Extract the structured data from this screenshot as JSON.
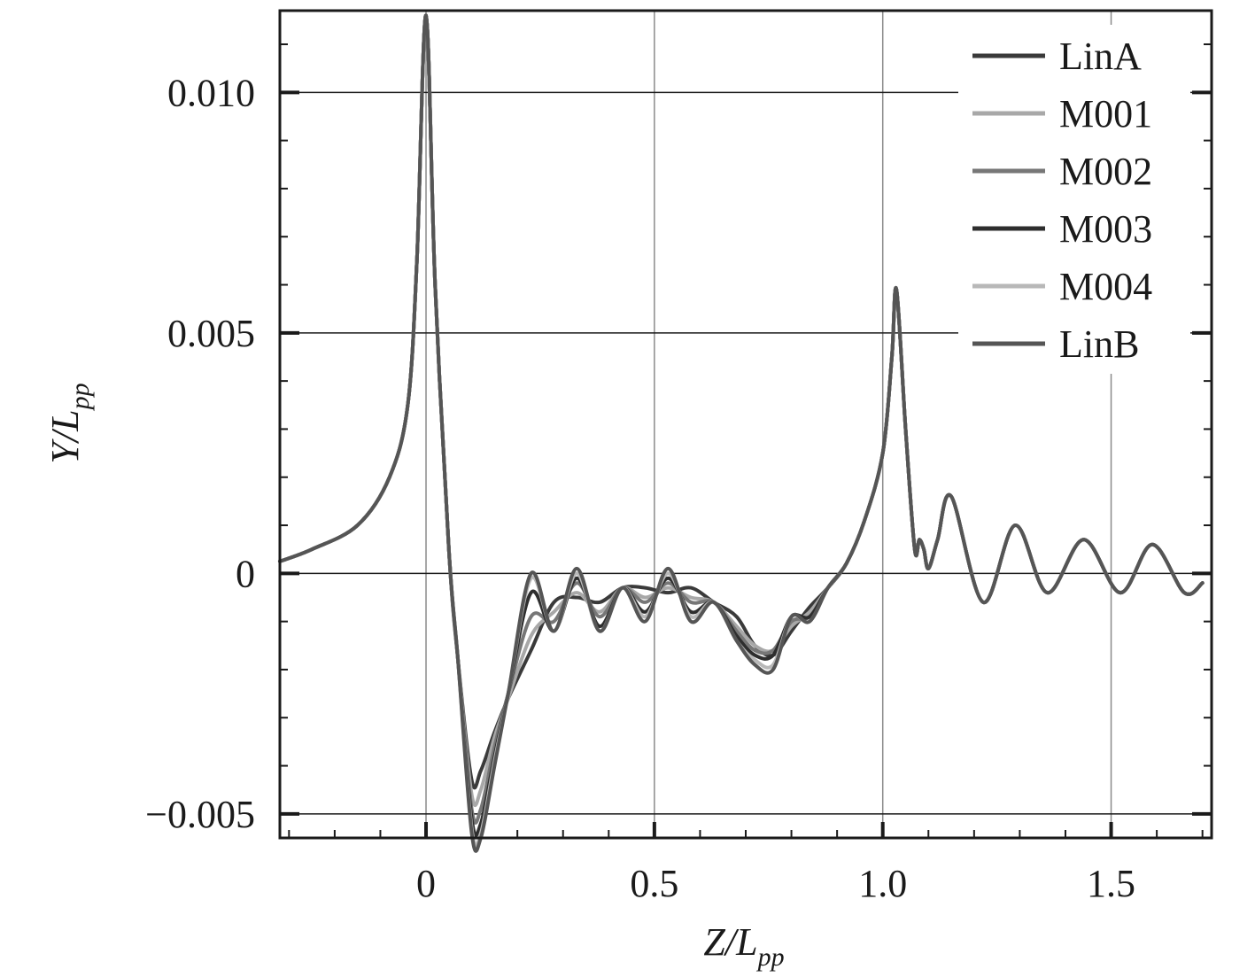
{
  "chart_data": {
    "type": "line",
    "title": "",
    "xlabel": {
      "main": "Z/L",
      "sub": "pp"
    },
    "ylabel": {
      "main": "Y/L",
      "sub": "pp"
    },
    "xlim": [
      -0.32,
      1.72
    ],
    "ylim": [
      -0.0055,
      0.0117
    ],
    "x_ticks": [
      {
        "value": 0,
        "label": "0"
      },
      {
        "value": 0.5,
        "label": "0.5"
      },
      {
        "value": 1.0,
        "label": "1.0"
      },
      {
        "value": 1.5,
        "label": "1.5"
      }
    ],
    "y_ticks": [
      {
        "value": 0.01,
        "label": "0.010"
      },
      {
        "value": 0.005,
        "label": "0.005"
      },
      {
        "value": 0,
        "label": "0"
      },
      {
        "value": -0.005,
        "label": "−0.005"
      }
    ],
    "grid": true,
    "legend_position": "top-right",
    "common_x": [
      -0.32,
      -0.25,
      -0.15,
      -0.08,
      -0.04,
      -0.02,
      0.0,
      0.02,
      0.05,
      0.07
    ],
    "common_y": [
      0.00025,
      0.0005,
      0.001,
      0.002,
      0.0035,
      0.0065,
      0.0116,
      0.006,
      0.0005,
      -0.0018
    ],
    "tail_x": [
      1.0,
      1.02,
      1.03,
      1.05,
      1.07,
      1.08,
      1.09,
      1.1,
      1.12,
      1.15,
      1.22,
      1.29,
      1.36,
      1.44,
      1.52,
      1.59,
      1.66,
      1.7
    ],
    "tail_y": [
      0.0025,
      0.0045,
      0.0059,
      0.003,
      0.0005,
      0.0007,
      0.0005,
      0.0001,
      0.0007,
      0.0016,
      -0.0006,
      0.001,
      -0.0004,
      0.0007,
      -0.0004,
      0.0006,
      -0.0004,
      -0.0002
    ],
    "series": [
      {
        "name": "LinA",
        "color": "#3a3a3a",
        "x": [
          0.07,
          0.1,
          0.12,
          0.15,
          0.18,
          0.23,
          0.28,
          0.33,
          0.38,
          0.43,
          0.48,
          0.53,
          0.58,
          0.63,
          0.68,
          0.72,
          0.76,
          0.8,
          0.84,
          0.88,
          0.92,
          0.96
        ],
        "y": [
          -0.0018,
          -0.0043,
          -0.0041,
          -0.0033,
          -0.0026,
          -0.0016,
          -0.0006,
          -0.0005,
          -0.0006,
          -0.0003,
          -0.0003,
          -0.0004,
          -0.0003,
          -0.0006,
          -0.0009,
          -0.0015,
          -0.0017,
          -0.0012,
          -0.0007,
          -0.0003,
          0.0002,
          0.0011
        ]
      },
      {
        "name": "M001",
        "color": "#a8a8a8",
        "x": [
          0.07,
          0.1,
          0.12,
          0.15,
          0.18,
          0.23,
          0.28,
          0.33,
          0.38,
          0.43,
          0.48,
          0.53,
          0.58,
          0.63,
          0.68,
          0.72,
          0.76,
          0.8,
          0.84,
          0.88,
          0.92,
          0.96
        ],
        "y": [
          -0.0018,
          -0.0046,
          -0.0045,
          -0.0034,
          -0.0026,
          -0.0013,
          -0.0008,
          -0.0004,
          -0.0008,
          -0.0003,
          -0.0005,
          -0.0003,
          -0.0005,
          -0.0006,
          -0.0011,
          -0.0015,
          -0.0016,
          -0.0011,
          -0.0008,
          -0.0003,
          0.0002,
          0.0011
        ]
      },
      {
        "name": "M002",
        "color": "#777777",
        "x": [
          0.07,
          0.1,
          0.12,
          0.15,
          0.18,
          0.23,
          0.28,
          0.33,
          0.38,
          0.43,
          0.48,
          0.53,
          0.58,
          0.63,
          0.68,
          0.72,
          0.76,
          0.8,
          0.84,
          0.88,
          0.92,
          0.96
        ],
        "y": [
          -0.0018,
          -0.0049,
          -0.0049,
          -0.0036,
          -0.0025,
          -0.0009,
          -0.001,
          -0.0002,
          -0.0009,
          -0.0003,
          -0.0006,
          -0.0002,
          -0.0006,
          -0.0006,
          -0.0012,
          -0.0016,
          -0.0016,
          -0.001,
          -0.0009,
          -0.0003,
          0.0002,
          0.0011
        ]
      },
      {
        "name": "M003",
        "color": "#2e2e2e",
        "x": [
          0.07,
          0.1,
          0.12,
          0.15,
          0.18,
          0.23,
          0.28,
          0.33,
          0.38,
          0.43,
          0.48,
          0.53,
          0.58,
          0.63,
          0.68,
          0.72,
          0.76,
          0.8,
          0.84,
          0.88,
          0.92,
          0.96
        ],
        "y": [
          -0.0018,
          -0.0051,
          -0.0052,
          -0.0038,
          -0.0025,
          -0.0004,
          -0.0012,
          -0.0001,
          -0.0011,
          -0.0003,
          -0.0008,
          -0.0001,
          -0.0008,
          -0.0006,
          -0.0013,
          -0.0017,
          -0.0017,
          -0.0009,
          -0.0009,
          -0.0003,
          0.0002,
          0.0011
        ]
      },
      {
        "name": "M004",
        "color": "#b8b8b8",
        "x": [
          0.07,
          0.1,
          0.12,
          0.15,
          0.18,
          0.23,
          0.28,
          0.33,
          0.38,
          0.43,
          0.48,
          0.53,
          0.58,
          0.63,
          0.68,
          0.72,
          0.76,
          0.8,
          0.84,
          0.88,
          0.92,
          0.96
        ],
        "y": [
          -0.0018,
          -0.0053,
          -0.0054,
          -0.0039,
          -0.0025,
          -0.0001,
          -0.0012,
          0.0,
          -0.0012,
          -0.0003,
          -0.0009,
          0.0,
          -0.0009,
          -0.0006,
          -0.0014,
          -0.0018,
          -0.0019,
          -0.0009,
          -0.001,
          -0.0003,
          0.0002,
          0.0011
        ]
      },
      {
        "name": "LinB",
        "color": "#555555",
        "x": [
          0.07,
          0.1,
          0.12,
          0.15,
          0.18,
          0.23,
          0.28,
          0.33,
          0.38,
          0.43,
          0.48,
          0.53,
          0.58,
          0.63,
          0.68,
          0.72,
          0.76,
          0.8,
          0.84,
          0.88,
          0.92,
          0.96
        ],
        "y": [
          -0.0018,
          -0.0054,
          -0.0055,
          -0.004,
          -0.0025,
          0.0,
          -0.0012,
          0.0001,
          -0.0012,
          -0.0003,
          -0.001,
          0.0001,
          -0.001,
          -0.0006,
          -0.0014,
          -0.0019,
          -0.002,
          -0.0009,
          -0.001,
          -0.0003,
          0.0002,
          0.0011
        ]
      }
    ]
  }
}
